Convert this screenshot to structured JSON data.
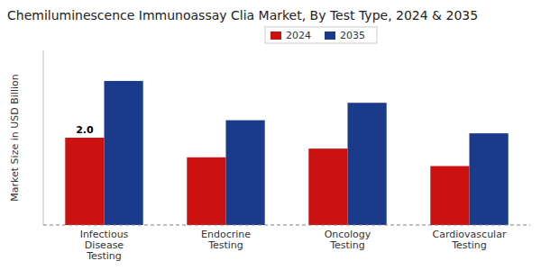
{
  "chart_data": {
    "type": "bar",
    "title": "Chemiluminescence Immunoassay Clia Market, By Test Type, 2024 & 2035",
    "ylabel": "Market Size in USD Billion",
    "categories": [
      "Infectious\nDisease\nTesting",
      "Endocrine\nTesting",
      "Oncology\nTesting",
      "Cardiovascular\nTesting"
    ],
    "series": [
      {
        "name": "2024",
        "color": "#cc1111",
        "values": [
          2.0,
          1.55,
          1.75,
          1.35
        ]
      },
      {
        "name": "2035",
        "color": "#1a3a8c",
        "values": [
          3.3,
          2.4,
          2.8,
          2.1
        ]
      }
    ],
    "ylim": [
      0,
      4.0
    ],
    "tick_labels": "x",
    "grid": false,
    "legend": "top",
    "annotations": [
      {
        "text": "2.0",
        "x": 0,
        "y": 2.0
      }
    ]
  }
}
